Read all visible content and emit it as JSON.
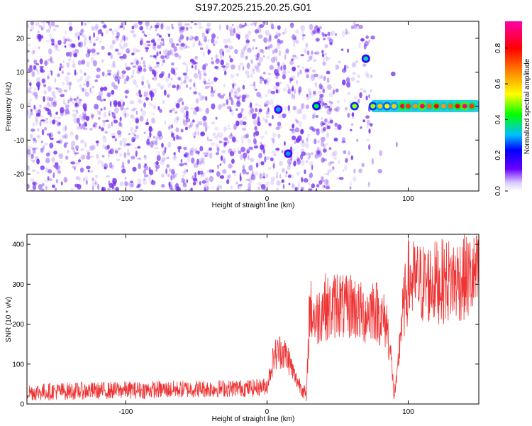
{
  "title": "S197.2025.215.20.25.G01",
  "colors": {
    "spectrogram_dot": "#7733ee",
    "snr_line": "#ee3333",
    "frame": "#000000"
  },
  "chart_data": [
    {
      "type": "heatmap",
      "xlabel": "Height of straight line (km)",
      "ylabel": "Frequency (Hz)",
      "xlim": [
        -170,
        150
      ],
      "ylim": [
        -25,
        25
      ],
      "xticks": [
        -100,
        0,
        100
      ],
      "yticks": [
        -20,
        -10,
        0,
        10,
        20
      ],
      "colorbar": {
        "label": "Normalized spectral amplitude",
        "range": [
          0.0,
          0.95
        ],
        "ticks": [
          0.0,
          0.2,
          0.4,
          0.6,
          0.8
        ],
        "colormap": "rainbow (purple-blue-cyan-green-yellow-orange-red-magenta)"
      },
      "peaks": [
        {
          "x": 8,
          "y": -1,
          "amplitude": 0.3
        },
        {
          "x": 15,
          "y": -14,
          "amplitude": 0.3
        },
        {
          "x": 35,
          "y": 0,
          "amplitude": 0.4
        },
        {
          "x": 62,
          "y": 0,
          "amplitude": 0.5
        },
        {
          "x": 70,
          "y": 14,
          "amplitude": 0.35
        },
        {
          "x": 75,
          "y": 0,
          "amplitude": 0.5
        },
        {
          "x": 80,
          "y": 0,
          "amplitude": 0.6
        },
        {
          "x": 85,
          "y": 0,
          "amplitude": 0.55
        },
        {
          "x": 90,
          "y": 0,
          "amplitude": 0.6
        },
        {
          "x": 96,
          "y": 0,
          "amplitude": 0.85
        },
        {
          "x": 100,
          "y": 0,
          "amplitude": 0.75
        },
        {
          "x": 105,
          "y": 0,
          "amplitude": 0.65
        },
        {
          "x": 110,
          "y": 0,
          "amplitude": 0.9
        },
        {
          "x": 115,
          "y": 0,
          "amplitude": 0.7
        },
        {
          "x": 120,
          "y": 0,
          "amplitude": 0.8
        },
        {
          "x": 125,
          "y": 0,
          "amplitude": 0.65
        },
        {
          "x": 130,
          "y": 0,
          "amplitude": 0.7
        },
        {
          "x": 135,
          "y": 0,
          "amplitude": 0.8
        },
        {
          "x": 140,
          "y": 0,
          "amplitude": 0.9
        },
        {
          "x": 145,
          "y": 0,
          "amplitude": 0.75
        }
      ]
    },
    {
      "type": "line",
      "xlabel": "Height of straight line (km)",
      "ylabel": "SNR (10 * v/v)",
      "xlim": [
        -170,
        150
      ],
      "ylim": [
        0,
        425
      ],
      "xticks": [
        -100,
        0,
        100
      ],
      "yticks": [
        0,
        100,
        200,
        300,
        400
      ],
      "series": [
        {
          "x": [
            -170,
            -160,
            -150,
            -140,
            -130,
            -120,
            -110,
            -100,
            -90,
            -80,
            -70,
            -60,
            -50,
            -40,
            -30,
            -20,
            -10,
            0,
            5,
            10,
            15,
            20,
            25,
            28,
            30,
            35,
            40,
            45,
            50,
            55,
            60,
            65,
            70,
            75,
            80,
            85,
            88,
            90,
            92,
            95,
            100,
            110,
            120,
            130,
            140,
            150
          ],
          "y": [
            30,
            30,
            32,
            32,
            33,
            33,
            34,
            35,
            35,
            36,
            36,
            37,
            38,
            38,
            39,
            40,
            40,
            45,
            120,
            135,
            115,
            65,
            40,
            15,
            240,
            210,
            250,
            230,
            260,
            235,
            250,
            230,
            225,
            245,
            220,
            200,
            110,
            20,
            60,
            200,
            310,
            300,
            305,
            310,
            315,
            320
          ]
        }
      ]
    }
  ]
}
